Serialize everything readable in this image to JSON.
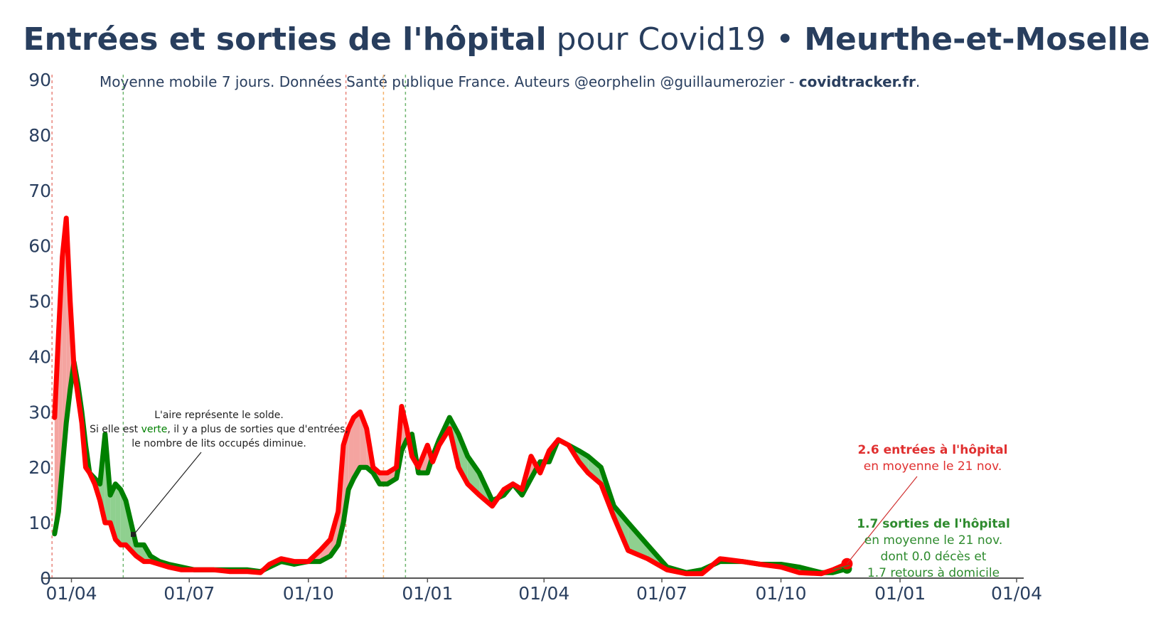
{
  "title": {
    "part1": "Entrées et sorties de l'hôpital",
    "part2": " pour Covid19 • ",
    "part3": "Meurthe-et-Moselle"
  },
  "subtitle": {
    "text": "Moyenne mobile 7 jours. Données Santé publique France. Auteurs @eorphelin @guillaumerozier - ",
    "site": "covidtracker.fr",
    "end": "."
  },
  "note": {
    "line1": "L'aire représente le solde.",
    "line2_a": "Si elle est ",
    "line2_b": "verte",
    "line2_c": ", il y a plus de sorties que d'entrées,",
    "line3": "le nombre de lits occupés diminue."
  },
  "annotations": {
    "entrees_bold": "2.6 entrées à l'hôpital",
    "entrees_sub": "en moyenne le 21 nov.",
    "sorties_bold": "1.7 sorties de l'hôpital",
    "sorties_sub1": "en moyenne le 21 nov.",
    "sorties_sub2": "dont 0.0 décès et",
    "sorties_sub3": "1.7 retours à domicile"
  },
  "colors": {
    "entrees": "#ff0000",
    "sorties": "#008000",
    "fill_red": "#f4a4a0",
    "fill_green": "#8fd08f",
    "vline_red": "#e8837a",
    "vline_green": "#6fb56f",
    "vline_orange": "#f5b26b"
  },
  "chart_data": {
    "type": "line",
    "x_unit": "date",
    "ylim": [
      0,
      90
    ],
    "yticks": [
      0,
      10,
      20,
      30,
      40,
      50,
      60,
      70,
      80,
      90
    ],
    "xlim": [
      "2020-03-18",
      "2022-04-01"
    ],
    "xticks": [
      {
        "date": "2020-04-01",
        "label": "01/04"
      },
      {
        "date": "2020-07-01",
        "label": "01/07"
      },
      {
        "date": "2020-10-01",
        "label": "01/10"
      },
      {
        "date": "2021-01-01",
        "label": "01/01"
      },
      {
        "date": "2021-04-01",
        "label": "01/04"
      },
      {
        "date": "2021-07-01",
        "label": "01/07"
      },
      {
        "date": "2021-10-01",
        "label": "01/10"
      },
      {
        "date": "2022-01-01",
        "label": "01/01"
      },
      {
        "date": "2022-04-01",
        "label": "01/04"
      }
    ],
    "vlines": [
      {
        "date": "2020-03-17",
        "color": "red"
      },
      {
        "date": "2020-05-11",
        "color": "green"
      },
      {
        "date": "2020-10-30",
        "color": "red"
      },
      {
        "date": "2020-11-28",
        "color": "orange"
      },
      {
        "date": "2020-12-15",
        "color": "green"
      }
    ],
    "series": [
      {
        "name": "Entrées",
        "x": [
          "2020-03-19",
          "2020-03-22",
          "2020-03-25",
          "2020-03-28",
          "2020-03-31",
          "2020-04-03",
          "2020-04-06",
          "2020-04-09",
          "2020-04-12",
          "2020-04-15",
          "2020-04-19",
          "2020-04-23",
          "2020-04-27",
          "2020-05-01",
          "2020-05-05",
          "2020-05-09",
          "2020-05-13",
          "2020-05-17",
          "2020-05-21",
          "2020-05-27",
          "2020-06-01",
          "2020-06-08",
          "2020-06-15",
          "2020-06-25",
          "2020-07-05",
          "2020-07-20",
          "2020-08-01",
          "2020-08-15",
          "2020-08-25",
          "2020-09-01",
          "2020-09-10",
          "2020-09-20",
          "2020-10-01",
          "2020-10-10",
          "2020-10-18",
          "2020-10-24",
          "2020-10-28",
          "2020-11-01",
          "2020-11-05",
          "2020-11-10",
          "2020-11-15",
          "2020-11-20",
          "2020-11-25",
          "2020-12-01",
          "2020-12-08",
          "2020-12-12",
          "2020-12-16",
          "2020-12-20",
          "2020-12-25",
          "2021-01-01",
          "2021-01-05",
          "2021-01-10",
          "2021-01-18",
          "2021-01-25",
          "2021-02-01",
          "2021-02-10",
          "2021-02-20",
          "2021-03-01",
          "2021-03-08",
          "2021-03-15",
          "2021-03-22",
          "2021-03-29",
          "2021-04-05",
          "2021-04-12",
          "2021-04-20",
          "2021-04-28",
          "2021-05-05",
          "2021-05-15",
          "2021-05-25",
          "2021-06-05",
          "2021-06-20",
          "2021-07-05",
          "2021-07-20",
          "2021-08-01",
          "2021-08-15",
          "2021-09-01",
          "2021-09-15",
          "2021-10-01",
          "2021-10-15",
          "2021-11-01",
          "2021-11-10",
          "2021-11-21"
        ],
        "y": [
          29,
          44,
          58,
          65,
          50,
          38,
          33,
          28,
          20,
          19,
          17,
          14,
          10,
          10,
          7,
          6,
          6,
          5,
          4,
          3,
          3,
          2.5,
          2,
          1.5,
          1.5,
          1.5,
          1.2,
          1.2,
          1,
          2.5,
          3.5,
          3,
          3,
          5,
          7,
          12,
          24,
          27,
          29,
          30,
          27,
          20,
          19,
          19,
          20,
          31,
          27,
          22,
          20,
          24,
          21,
          24,
          27,
          20,
          17,
          15,
          13,
          16,
          17,
          16,
          22,
          19,
          23,
          25,
          24,
          21,
          19,
          17,
          11,
          5,
          3.5,
          1.5,
          0.8,
          0.8,
          3.5,
          3,
          2.5,
          2,
          1,
          0.8,
          1.5,
          2.6
        ]
      },
      {
        "name": "Sorties",
        "x": [
          "2020-03-19",
          "2020-03-22",
          "2020-03-25",
          "2020-03-28",
          "2020-03-31",
          "2020-04-03",
          "2020-04-06",
          "2020-04-09",
          "2020-04-12",
          "2020-04-15",
          "2020-04-19",
          "2020-04-23",
          "2020-04-27",
          "2020-05-01",
          "2020-05-05",
          "2020-05-09",
          "2020-05-13",
          "2020-05-17",
          "2020-05-21",
          "2020-05-27",
          "2020-06-01",
          "2020-06-08",
          "2020-06-15",
          "2020-06-25",
          "2020-07-05",
          "2020-07-20",
          "2020-08-01",
          "2020-08-15",
          "2020-08-25",
          "2020-09-01",
          "2020-09-10",
          "2020-09-20",
          "2020-10-01",
          "2020-10-10",
          "2020-10-18",
          "2020-10-24",
          "2020-10-28",
          "2020-11-01",
          "2020-11-05",
          "2020-11-10",
          "2020-11-15",
          "2020-11-20",
          "2020-11-25",
          "2020-12-01",
          "2020-12-08",
          "2020-12-12",
          "2020-12-16",
          "2020-12-20",
          "2020-12-25",
          "2021-01-01",
          "2021-01-05",
          "2021-01-10",
          "2021-01-18",
          "2021-01-25",
          "2021-02-01",
          "2021-02-10",
          "2021-02-20",
          "2021-03-01",
          "2021-03-08",
          "2021-03-15",
          "2021-03-22",
          "2021-03-29",
          "2021-04-05",
          "2021-04-12",
          "2021-04-20",
          "2021-04-28",
          "2021-05-05",
          "2021-05-15",
          "2021-05-25",
          "2021-06-05",
          "2021-06-20",
          "2021-07-05",
          "2021-07-20",
          "2021-08-01",
          "2021-08-15",
          "2021-09-01",
          "2021-09-15",
          "2021-10-01",
          "2021-10-15",
          "2021-11-01",
          "2021-11-10",
          "2021-11-21"
        ],
        "y": [
          8,
          12,
          20,
          28,
          34,
          39,
          35,
          30,
          24,
          19,
          18,
          17,
          26,
          15,
          17,
          16,
          14,
          10,
          6,
          6,
          4,
          3,
          2.5,
          2,
          1.5,
          1.5,
          1.5,
          1.5,
          1.2,
          2,
          3,
          2.5,
          3,
          3,
          4,
          6,
          10,
          16,
          18,
          20,
          20,
          19,
          17,
          17,
          18,
          23,
          25,
          26,
          19,
          19,
          22,
          25,
          29,
          26,
          22,
          19,
          14,
          15,
          17,
          15,
          18,
          21,
          21,
          25,
          24,
          23,
          22,
          20,
          13,
          10,
          6,
          2,
          1,
          1.5,
          3,
          3,
          2.5,
          2.5,
          2,
          1,
          1,
          1.7
        ]
      }
    ]
  }
}
